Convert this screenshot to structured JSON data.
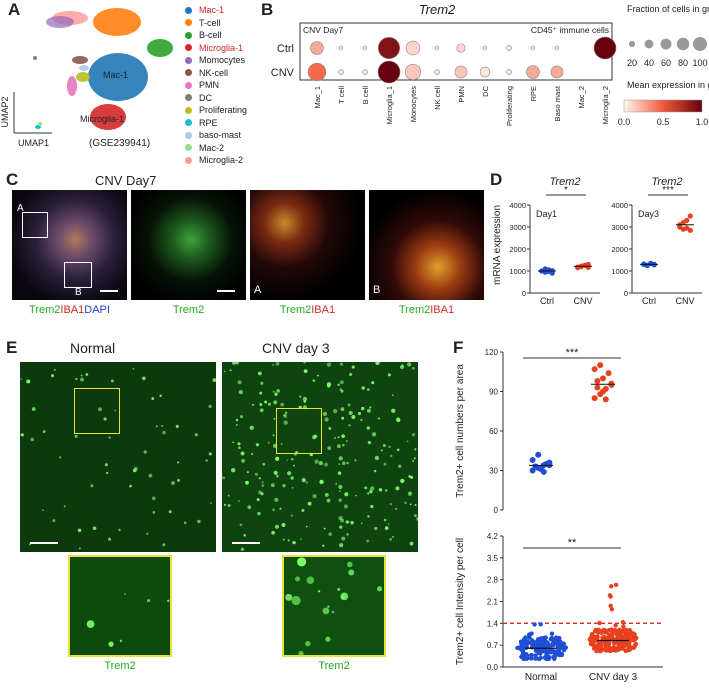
{
  "panel_letters": [
    "A",
    "B",
    "C",
    "D",
    "E",
    "F"
  ],
  "panelA": {
    "axis_y": "UMAP2",
    "axis_x": "UMAP1",
    "dataset": "(GSE239941)",
    "cluster_labels": [
      "Mac-1",
      "Microglia-1"
    ],
    "legend": [
      {
        "name": "Mac-1",
        "color": "#1f77b4",
        "highlight": true
      },
      {
        "name": "T-cell",
        "color": "#ff7f0e",
        "highlight": false
      },
      {
        "name": "B-cell",
        "color": "#2ca02c",
        "highlight": false
      },
      {
        "name": "Microglia-1",
        "color": "#d62728",
        "highlight": true
      },
      {
        "name": "Momocytes",
        "color": "#9467bd",
        "highlight": false
      },
      {
        "name": "NK-cell",
        "color": "#8c564b",
        "highlight": false
      },
      {
        "name": "PMN",
        "color": "#e377c2",
        "highlight": false
      },
      {
        "name": "DC",
        "color": "#7f7f7f",
        "highlight": false
      },
      {
        "name": "Proliferating",
        "color": "#bcbd22",
        "highlight": false
      },
      {
        "name": "RPE",
        "color": "#17becf",
        "highlight": false
      },
      {
        "name": "baso-mast",
        "color": "#aec7e8",
        "highlight": false
      },
      {
        "name": "Mac-2",
        "color": "#98df8a",
        "highlight": false
      },
      {
        "name": "Microglia-2",
        "color": "#ff9896",
        "highlight": false
      }
    ]
  },
  "panelB": {
    "title": "Trem2",
    "left_note": "CNV Day7",
    "right_note": "CD45⁺ immune cells",
    "size_legend_title": "Fraction of cells in group (%)",
    "size_ticks": [
      "20",
      "40",
      "60",
      "80",
      "100"
    ],
    "color_legend_title": "Mean expression in group",
    "color_ticks": [
      "0.0",
      "0.5",
      "1.0"
    ]
  },
  "panelC": {
    "title": "CNV Day7",
    "captions": [
      {
        "green": "Trem2",
        "red": "IBA1",
        "blue": "DAPI"
      },
      {
        "green": "Trem2",
        "red": "",
        "blue": ""
      },
      {
        "green": "Trem2",
        "red": "IBA1",
        "blue": ""
      },
      {
        "green": "Trem2",
        "red": "IBA1",
        "blue": ""
      }
    ],
    "inset_labels": [
      "A",
      "B"
    ]
  },
  "panelD": {
    "ylabel": "mRNA expression",
    "plots": [
      {
        "title": "Trem2",
        "day": "Day1",
        "sig": "*",
        "yticks": [
          "0",
          "1000",
          "2000",
          "3000",
          "4000"
        ]
      },
      {
        "title": "Trem2",
        "day": "Day3",
        "sig": "***",
        "yticks": [
          "0",
          "1000",
          "2000",
          "3000",
          "4000"
        ]
      }
    ],
    "categories": [
      "Ctrl",
      "CNV"
    ]
  },
  "panelE": {
    "titles": [
      "Normal",
      "CNV day 3"
    ],
    "captions": [
      "Trem2",
      "Trem2"
    ]
  },
  "panelF": {
    "top": {
      "ylabel": "Trem2+ cell numbers per area",
      "sig": "***",
      "yticks": [
        "0",
        "30",
        "60",
        "90",
        "120"
      ]
    },
    "bottom": {
      "ylabel": "Trem2+ cell Intensity per cell",
      "sig": "**",
      "yticks": [
        "0.0",
        "0.7",
        "1.4",
        "2.1",
        "2.8",
        "3.5",
        "4.2"
      ]
    },
    "categories": [
      "Normal",
      "CNV day 3"
    ]
  },
  "chart_data": [
    {
      "type": "scatter",
      "title": "Trem2",
      "categories": [
        "Mac_1",
        "T cell",
        "B cell",
        "Microglia_1",
        "Monocytes",
        "NK cell",
        "PMN",
        "DC",
        "Proliferating",
        "RPE",
        "Baso mast",
        "Mac_2",
        "Microglia_2"
      ],
      "series": [
        {
          "name": "Ctrl",
          "fraction": [
            35,
            3,
            3,
            95,
            40,
            3,
            15,
            3,
            5,
            3,
            3,
            0,
            100
          ],
          "expression": [
            0.25,
            0.05,
            0.05,
            0.9,
            0.1,
            0.05,
            0.1,
            0.05,
            0.05,
            0.05,
            0.05,
            0.0,
            1.0
          ]
        },
        {
          "name": "CNV",
          "fraction": [
            65,
            5,
            5,
            100,
            50,
            5,
            30,
            20,
            5,
            35,
            30,
            0,
            0
          ],
          "expression": [
            0.45,
            0.05,
            0.05,
            1.0,
            0.15,
            0.05,
            0.15,
            0.05,
            0.05,
            0.25,
            0.25,
            0.0,
            0.0
          ]
        }
      ],
      "ylabel": "",
      "xlabel": ""
    },
    {
      "type": "scatter",
      "title": "Trem2",
      "xlabel": "",
      "ylabel": "mRNA expression",
      "categories": [
        "Ctrl",
        "CNV"
      ],
      "ylim": [
        0,
        4000
      ],
      "series": [
        {
          "name": "Ctrl",
          "values": [
            1000,
            950,
            1050,
            900,
            1000,
            1100,
            980,
            1020
          ]
        },
        {
          "name": "CNV",
          "values": [
            1150,
            1200,
            1250,
            1300,
            1180,
            1220,
            1260,
            1170
          ]
        }
      ]
    },
    {
      "type": "scatter",
      "title": "Trem2",
      "xlabel": "",
      "ylabel": "mRNA expression",
      "categories": [
        "Ctrl",
        "CNV"
      ],
      "ylim": [
        0,
        4000
      ],
      "series": [
        {
          "name": "Ctrl",
          "values": [
            1300,
            1250,
            1350,
            1280,
            1320,
            1260,
            1340,
            1300
          ]
        },
        {
          "name": "CNV",
          "values": [
            3100,
            2900,
            3300,
            3500,
            3000,
            3200,
            2950,
            2850
          ]
        }
      ]
    },
    {
      "type": "scatter",
      "title": "",
      "xlabel": "",
      "ylabel": "Trem2+ cell numbers per area",
      "categories": [
        "Normal",
        "CNV day 3"
      ],
      "ylim": [
        0,
        120
      ],
      "series": [
        {
          "name": "Normal",
          "values": [
            30,
            32,
            34,
            36,
            33,
            31,
            35,
            38,
            42,
            29,
            34,
            33
          ]
        },
        {
          "name": "CNV day 3",
          "values": [
            85,
            88,
            92,
            95,
            98,
            100,
            104,
            107,
            110,
            84,
            96,
            93,
            90
          ]
        }
      ]
    },
    {
      "type": "scatter",
      "title": "",
      "xlabel": "",
      "ylabel": "Trem2+ cell Intensity per cell",
      "categories": [
        "Normal",
        "CNV day 3"
      ],
      "ylim": [
        0,
        4.2
      ],
      "series": [
        {
          "name": "Normal",
          "mean": 0.6,
          "max": 1.5
        },
        {
          "name": "CNV day 3",
          "mean": 0.85,
          "max": 2.9
        }
      ]
    }
  ]
}
